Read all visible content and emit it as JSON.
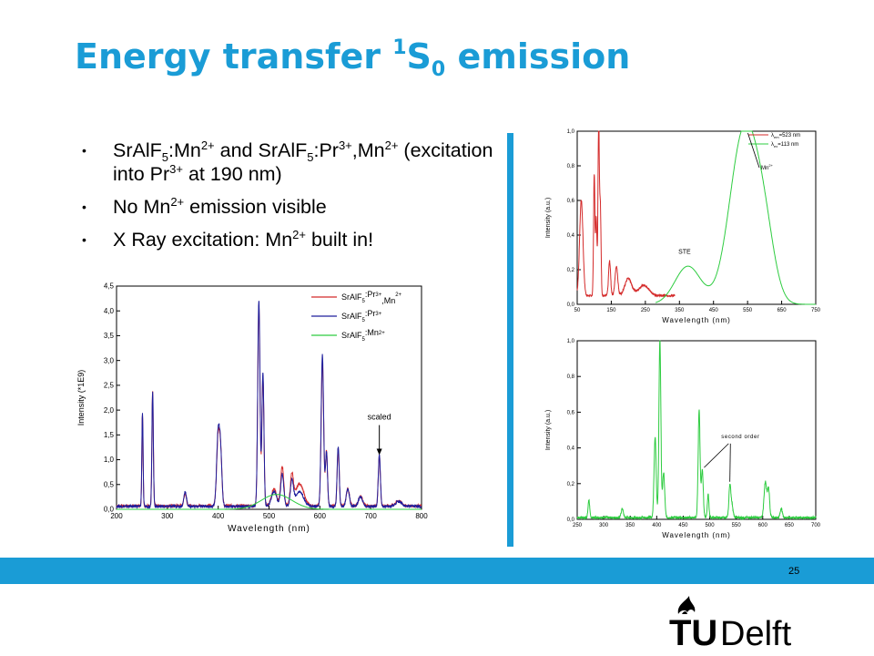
{
  "slide": {
    "title_main": "Energy transfer ",
    "title_sup": "1",
    "title_S": "S",
    "title_sub": "0",
    "title_end": " emission",
    "page_number": "25",
    "bullet_glyph": "•",
    "bullets": [
      {
        "a": "SrAlF",
        "b": "5",
        "c": ":Mn",
        "d": "2+",
        "e": " and SrAlF",
        "f": "5",
        "g": ":Pr",
        "h": "3+",
        "i": ",Mn",
        "j": "2+",
        "k": " (excitation into Pr",
        "l": "3+",
        "m": " at 190 nm)"
      },
      {
        "a": "No Mn",
        "b": "2+",
        "c": " emission visible"
      },
      {
        "a": "X Ray excitation: Mn",
        "b": "2+",
        "c": " built in!"
      }
    ],
    "logo": {
      "tu": "TU",
      "delft": "Delft",
      "flame_icon": "flame-icon"
    }
  },
  "colors": {
    "accent": "#1a9cd6",
    "red": "#d42a2a",
    "blue": "#1e1e9c",
    "green": "#2ecc40"
  },
  "chart_data": [
    {
      "type": "line",
      "xlabel": "Wavelength (nm)",
      "ylabel": "Intensity (*1E9)",
      "xlim": [
        200,
        800
      ],
      "ylim": [
        0,
        4.5
      ],
      "xticks": [
        "200",
        "300",
        "400",
        "500",
        "600",
        "700",
        "800"
      ],
      "yticks": [
        "0,0",
        "0,5",
        "1,0",
        "1,5",
        "2,0",
        "2,5",
        "3,0",
        "3,5",
        "4,0",
        "4,5"
      ],
      "legend": [
        {
          "name": "SrAlF5:Pr3+,Mn2+",
          "pre": "SrAlF",
          "sub": "5",
          "mid": ":Pr",
          "sup": "3+",
          "post": ",Mn",
          "sup2": "2+",
          "color": "#d42a2a"
        },
        {
          "name": "SrAlF5:Pr3+",
          "pre": "SrAlF",
          "sub": "5",
          "mid": ":Pr",
          "sup": "3+",
          "post": "",
          "sup2": "",
          "color": "#1e1e9c"
        },
        {
          "name": "SrAlF5:Mn2+",
          "pre": "SrAlF",
          "sub": "5",
          "mid": ":Mn",
          "sup": "2+",
          "post": "",
          "sup2": "",
          "color": "#2ecc40"
        }
      ],
      "annotation": {
        "text": "scaled",
        "x": 717,
        "y": 1.0
      },
      "series": [
        {
          "name": "SrAlF5:Pr3+,Mn2+",
          "color": "#d42a2a",
          "baseline": 0.07,
          "peaks": [
            [
              251,
              1.85,
              1.2
            ],
            [
              271,
              2.3,
              1.4
            ],
            [
              335,
              0.25,
              2.5
            ],
            [
              400,
              1.4,
              3
            ],
            [
              405,
              0.9,
              2.5
            ],
            [
              480,
              4.05,
              2.2
            ],
            [
              488,
              2.6,
              2.0
            ],
            [
              510,
              0.35,
              5
            ],
            [
              526,
              0.8,
              3
            ],
            [
              545,
              0.6,
              3
            ],
            [
              560,
              0.45,
              8
            ],
            [
              605,
              2.9,
              2.4
            ],
            [
              613,
              1.1,
              2.0
            ],
            [
              636,
              1.15,
              2
            ],
            [
              655,
              0.35,
              3
            ],
            [
              680,
              0.2,
              4
            ],
            [
              717,
              1.0,
              2
            ],
            [
              755,
              0.1,
              6
            ]
          ]
        },
        {
          "name": "SrAlF5:Pr3+",
          "color": "#1e1e9c",
          "baseline": 0.06,
          "peaks": [
            [
              251,
              1.9,
              1.2
            ],
            [
              271,
              2.3,
              1.4
            ],
            [
              335,
              0.3,
              2.5
            ],
            [
              400,
              1.5,
              3
            ],
            [
              405,
              0.9,
              2.5
            ],
            [
              480,
              4.15,
              2.2
            ],
            [
              488,
              2.7,
              2.0
            ],
            [
              510,
              0.3,
              5
            ],
            [
              526,
              0.65,
              3
            ],
            [
              545,
              0.5,
              3
            ],
            [
              560,
              0.3,
              8
            ],
            [
              605,
              3.05,
              2.4
            ],
            [
              613,
              1.1,
              2.0
            ],
            [
              636,
              1.2,
              2
            ],
            [
              655,
              0.35,
              3
            ],
            [
              680,
              0.2,
              4
            ],
            [
              717,
              1.05,
              2
            ],
            [
              755,
              0.1,
              6
            ]
          ]
        },
        {
          "name": "SrAlF5:Mn2+",
          "color": "#2ecc40",
          "baseline": 0.0,
          "peaks": [
            [
              515,
              0.3,
              30
            ]
          ]
        }
      ]
    },
    {
      "type": "line",
      "xlabel": "Wavelength (nm)",
      "ylabel": "Intensity (a.u.)",
      "xlim": [
        50,
        750
      ],
      "ylim": [
        0,
        1.0
      ],
      "xticks": [
        "50",
        "150",
        "250",
        "350",
        "450",
        "550",
        "650",
        "750"
      ],
      "yticks": [
        "0,0",
        "0,2",
        "0,4",
        "0,6",
        "0,8",
        "1,0"
      ],
      "legend": [
        {
          "name": "λem=523 nm",
          "pre": "λ",
          "sub": "em",
          "post": "=523 nm",
          "color": "#d42a2a"
        },
        {
          "name": "λex=113 nm",
          "pre": "λ",
          "sub": "ex",
          "post": "=113 nm",
          "color": "#2ecc40"
        }
      ],
      "annotations": [
        {
          "text": "Mn",
          "sup": "2+",
          "x": 540,
          "y": 1.0
        },
        {
          "text": "STE",
          "x": 365,
          "y": 0.24
        }
      ],
      "series": [
        {
          "name": "λem=523 nm",
          "color": "#d42a2a",
          "range": [
            50,
            337
          ],
          "baseline": 0.05,
          "peaks": [
            [
              62,
              0.55,
              5
            ],
            [
              100,
              0.7,
              2
            ],
            [
              106,
              0.45,
              2
            ],
            [
              113,
              1.0,
              2
            ],
            [
              118,
              0.5,
              2
            ],
            [
              145,
              0.2,
              3
            ],
            [
              165,
              0.17,
              4
            ],
            [
              200,
              0.1,
              10
            ],
            [
              245,
              0.06,
              15
            ]
          ]
        },
        {
          "name": "λex=113 nm",
          "color": "#2ecc40",
          "range": [
            280,
            750
          ],
          "baseline": 0.0,
          "peaks": [
            [
              375,
              0.22,
              38
            ],
            [
              540,
              1.0,
              42
            ],
            [
              600,
              0.3,
              30
            ]
          ]
        }
      ]
    },
    {
      "type": "line",
      "xlabel": "Wavelength (nm)",
      "ylabel": "Intensity (a.u.)",
      "xlim": [
        250,
        700
      ],
      "ylim": [
        0,
        1.0
      ],
      "xticks": [
        "250",
        "300",
        "350",
        "400",
        "450",
        "500",
        "550",
        "600",
        "650",
        "700"
      ],
      "yticks": [
        "0,0",
        "0,2",
        "0,4",
        "0,6",
        "0,8",
        "1,0"
      ],
      "annotation": {
        "text": "second order",
        "x": 515,
        "y": 0.22
      },
      "series": [
        {
          "name": "spectrum",
          "color": "#2ecc40",
          "baseline": 0.01,
          "peaks": [
            [
              272,
              0.1,
              1.5
            ],
            [
              335,
              0.05,
              2
            ],
            [
              397,
              0.45,
              2
            ],
            [
              406,
              1.0,
              1.8
            ],
            [
              413,
              0.25,
              2
            ],
            [
              480,
              0.6,
              1.8
            ],
            [
              486,
              0.27,
              1.8
            ],
            [
              497,
              0.13,
              1.5
            ],
            [
              538,
              0.18,
              1.8
            ],
            [
              542,
              0.07,
              2
            ],
            [
              605,
              0.2,
              2.5
            ],
            [
              611,
              0.16,
              2
            ],
            [
              635,
              0.05,
              2
            ]
          ]
        }
      ]
    }
  ]
}
